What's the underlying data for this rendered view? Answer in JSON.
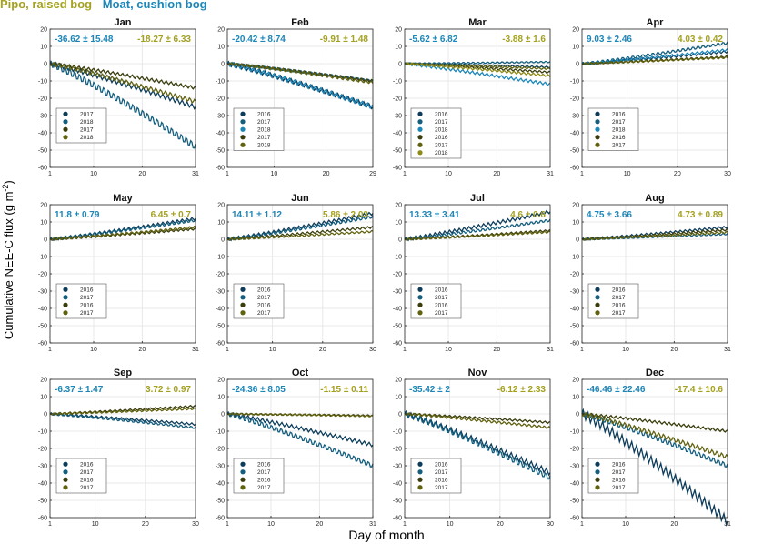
{
  "legend": [
    {
      "label": "Pipo, raised bog",
      "color": "#a4a11e"
    },
    {
      "label": "Moat, cushion bog",
      "color": "#1b86b8"
    }
  ],
  "ylabel_text": "Cumulative NEE-C flux",
  "ylabel_unit": "(g m",
  "ylabel_sup": "-2",
  "ylabel_close": ")",
  "xlabel": "Day of month",
  "colors": {
    "moat": [
      "#0d3d5b",
      "#145e7e",
      "#1b86b8",
      "#2aa3d4"
    ],
    "pipo": [
      "#3a3d0c",
      "#61620f",
      "#8d8a17",
      "#b4ad1e"
    ],
    "moat_text": "#1b86b8",
    "pipo_text": "#a4a11e"
  },
  "chart_data": [
    {
      "type": "line",
      "title": "Jan",
      "xlim": [
        1,
        31
      ],
      "xticks": [
        1,
        10,
        20,
        31
      ],
      "ylim": [
        -60,
        20
      ],
      "yticks": [
        20,
        10,
        0,
        -10,
        -20,
        -30,
        -40,
        -50,
        -60
      ],
      "moat_stat": "-36.62 ± 15.48",
      "pipo_stat": "-18.27 ± 6.33",
      "series": [
        {
          "name": "2017",
          "group": "moat",
          "end": -25
        },
        {
          "name": "2018",
          "group": "moat",
          "end": -48
        },
        {
          "name": "2017",
          "group": "pipo",
          "end": -14
        },
        {
          "name": "2018",
          "group": "pipo",
          "end": -22
        }
      ]
    },
    {
      "type": "line",
      "title": "Feb",
      "xlim": [
        1,
        29
      ],
      "xticks": [
        1,
        10,
        20,
        29
      ],
      "ylim": [
        -60,
        20
      ],
      "yticks": [
        20,
        10,
        0,
        -10,
        -20,
        -30,
        -40,
        -50,
        -60
      ],
      "moat_stat": "-20.42 ± 8.74",
      "pipo_stat": "-9.91 ± 1.48",
      "series": [
        {
          "name": "2016",
          "group": "moat",
          "end": -25
        },
        {
          "name": "2017",
          "group": "moat",
          "end": -10
        },
        {
          "name": "2018",
          "group": "moat",
          "end": -25
        },
        {
          "name": "2017",
          "group": "pipo",
          "end": -10
        },
        {
          "name": "2018",
          "group": "pipo",
          "end": -11
        }
      ]
    },
    {
      "type": "line",
      "title": "Mar",
      "xlim": [
        1,
        31
      ],
      "xticks": [
        1,
        10,
        20,
        31
      ],
      "ylim": [
        -60,
        20
      ],
      "yticks": [
        20,
        10,
        0,
        -10,
        -20,
        -30,
        -40,
        -50,
        -60
      ],
      "moat_stat": "-5.62 ± 6.82",
      "pipo_stat": "-3.88 ± 1.6",
      "series": [
        {
          "name": "2016",
          "group": "moat",
          "end": -2
        },
        {
          "name": "2017",
          "group": "moat",
          "end": 1
        },
        {
          "name": "2018",
          "group": "moat",
          "end": -12
        },
        {
          "name": "2016",
          "group": "pipo",
          "end": -5
        },
        {
          "name": "2017",
          "group": "pipo",
          "end": -3
        },
        {
          "name": "2018",
          "group": "pipo",
          "end": -7
        }
      ]
    },
    {
      "type": "line",
      "title": "Apr",
      "xlim": [
        1,
        30
      ],
      "xticks": [
        1,
        10,
        20,
        30
      ],
      "ylim": [
        -60,
        20
      ],
      "yticks": [
        20,
        10,
        0,
        -10,
        -20,
        -30,
        -40,
        -50,
        -60
      ],
      "moat_stat": "9.03 ± 2.46",
      "pipo_stat": "4.03 ± 0.42",
      "series": [
        {
          "name": "2016",
          "group": "moat",
          "end": 7
        },
        {
          "name": "2017",
          "group": "moat",
          "end": 12
        },
        {
          "name": "2018",
          "group": "moat",
          "end": 8
        },
        {
          "name": "2016",
          "group": "pipo",
          "end": 4
        },
        {
          "name": "2017",
          "group": "pipo",
          "end": 3.5
        }
      ]
    },
    {
      "type": "line",
      "title": "May",
      "xlim": [
        1,
        31
      ],
      "xticks": [
        1,
        10,
        20,
        31
      ],
      "ylim": [
        -60,
        20
      ],
      "yticks": [
        20,
        10,
        0,
        -10,
        -20,
        -30,
        -40,
        -50,
        -60
      ],
      "moat_stat": "11.8 ± 0.79",
      "pipo_stat": "6.45 ± 0.7",
      "series": [
        {
          "name": "2016",
          "group": "moat",
          "end": 12
        },
        {
          "name": "2017",
          "group": "moat",
          "end": 11
        },
        {
          "name": "2016",
          "group": "pipo",
          "end": 6
        },
        {
          "name": "2017",
          "group": "pipo",
          "end": 7
        }
      ]
    },
    {
      "type": "line",
      "title": "Jun",
      "xlim": [
        1,
        30
      ],
      "xticks": [
        1,
        10,
        20,
        30
      ],
      "ylim": [
        -60,
        20
      ],
      "yticks": [
        20,
        10,
        0,
        -10,
        -20,
        -30,
        -40,
        -50,
        -60
      ],
      "moat_stat": "14.11 ± 1.12",
      "pipo_stat": "5.86 ± 2.03",
      "series": [
        {
          "name": "2016",
          "group": "moat",
          "end": 15
        },
        {
          "name": "2017",
          "group": "moat",
          "end": 13
        },
        {
          "name": "2016",
          "group": "pipo",
          "end": 7
        },
        {
          "name": "2017",
          "group": "pipo",
          "end": 4.5
        }
      ]
    },
    {
      "type": "line",
      "title": "Jul",
      "xlim": [
        1,
        31
      ],
      "xticks": [
        1,
        10,
        20,
        31
      ],
      "ylim": [
        -60,
        20
      ],
      "yticks": [
        20,
        10,
        0,
        -10,
        -20,
        -30,
        -40,
        -50,
        -60
      ],
      "moat_stat": "13.33 ± 3.41",
      "pipo_stat": "4.6 ± 0.6",
      "series": [
        {
          "name": "2016",
          "group": "moat",
          "end": 16
        },
        {
          "name": "2017",
          "group": "moat",
          "end": 11
        },
        {
          "name": "2016",
          "group": "pipo",
          "end": 5
        },
        {
          "name": "2017",
          "group": "pipo",
          "end": 4.2
        }
      ]
    },
    {
      "type": "line",
      "title": "Aug",
      "xlim": [
        1,
        31
      ],
      "xticks": [
        1,
        10,
        20,
        31
      ],
      "ylim": [
        -60,
        20
      ],
      "yticks": [
        20,
        10,
        0,
        -10,
        -20,
        -30,
        -40,
        -50,
        -60
      ],
      "moat_stat": "4.75 ± 3.66",
      "pipo_stat": "4.73 ± 0.89",
      "series": [
        {
          "name": "2016",
          "group": "moat",
          "end": 7
        },
        {
          "name": "2017",
          "group": "moat",
          "end": 3
        },
        {
          "name": "2016",
          "group": "pipo",
          "end": 5.5
        },
        {
          "name": "2017",
          "group": "pipo",
          "end": 4
        }
      ]
    },
    {
      "type": "line",
      "title": "Sep",
      "xlim": [
        1,
        30
      ],
      "xticks": [
        1,
        10,
        20,
        30
      ],
      "ylim": [
        -60,
        20
      ],
      "yticks": [
        20,
        10,
        0,
        -10,
        -20,
        -30,
        -40,
        -50,
        -60
      ],
      "moat_stat": "-6.37 ± 1.47",
      "pipo_stat": "3.72 ± 0.97",
      "series": [
        {
          "name": "2016",
          "group": "moat",
          "end": -6
        },
        {
          "name": "2017",
          "group": "moat",
          "end": -8
        },
        {
          "name": "2016",
          "group": "pipo",
          "end": 4.5
        },
        {
          "name": "2017",
          "group": "pipo",
          "end": 3
        }
      ]
    },
    {
      "type": "line",
      "title": "Oct",
      "xlim": [
        1,
        31
      ],
      "xticks": [
        1,
        10,
        20,
        31
      ],
      "ylim": [
        -60,
        20
      ],
      "yticks": [
        20,
        10,
        0,
        -10,
        -20,
        -30,
        -40,
        -50,
        -60
      ],
      "moat_stat": "-24.36 ± 8.05",
      "pipo_stat": "-1.15 ± 0.11",
      "series": [
        {
          "name": "2016",
          "group": "moat",
          "end": -18
        },
        {
          "name": "2017",
          "group": "moat",
          "end": -30
        },
        {
          "name": "2016",
          "group": "pipo",
          "end": -1
        },
        {
          "name": "2017",
          "group": "pipo",
          "end": -1.3
        }
      ]
    },
    {
      "type": "line",
      "title": "Nov",
      "xlim": [
        1,
        30
      ],
      "xticks": [
        1,
        10,
        20,
        30
      ],
      "ylim": [
        -60,
        20
      ],
      "yticks": [
        20,
        10,
        0,
        -10,
        -20,
        -30,
        -40,
        -50,
        -60
      ],
      "moat_stat": "-35.42 ± 2",
      "pipo_stat": "-6.12 ± 2.33",
      "series": [
        {
          "name": "2016",
          "group": "moat",
          "end": -34
        },
        {
          "name": "2017",
          "group": "moat",
          "end": -37
        },
        {
          "name": "2016",
          "group": "pipo",
          "end": -5
        },
        {
          "name": "2017",
          "group": "pipo",
          "end": -8
        }
      ]
    },
    {
      "type": "line",
      "title": "Dec",
      "xlim": [
        1,
        31
      ],
      "xticks": [
        1,
        10,
        20,
        31
      ],
      "ylim": [
        -60,
        20
      ],
      "yticks": [
        20,
        10,
        0,
        -10,
        -20,
        -30,
        -40,
        -50,
        -60
      ],
      "moat_stat": "-46.46 ± 22.46",
      "pipo_stat": "-17.4 ± 10.6",
      "series": [
        {
          "name": "2016",
          "group": "moat",
          "end": -62
        },
        {
          "name": "2017",
          "group": "moat",
          "end": -30
        },
        {
          "name": "2016",
          "group": "pipo",
          "end": -10
        },
        {
          "name": "2017",
          "group": "pipo",
          "end": -25
        }
      ]
    }
  ]
}
